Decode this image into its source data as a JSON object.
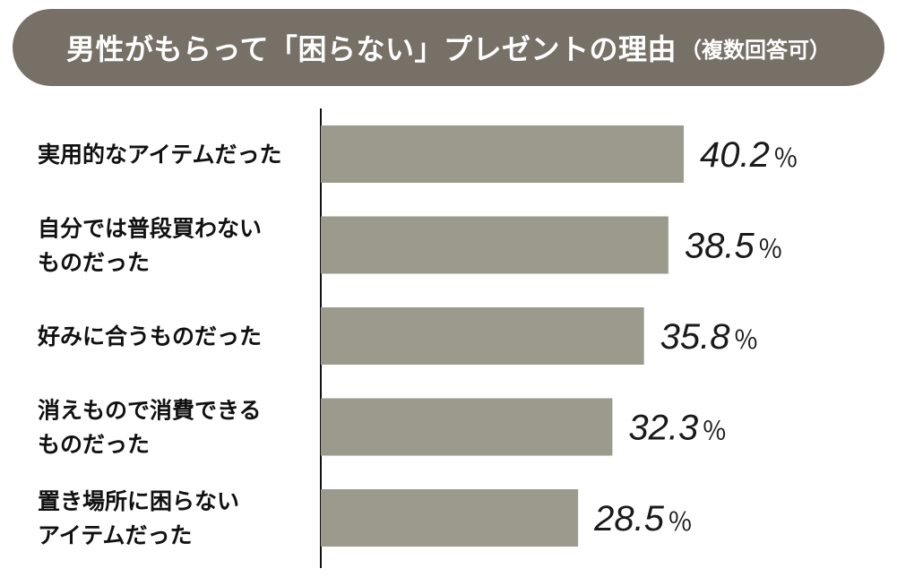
{
  "title": {
    "main": "男性がもらって「困らない」プレゼントの理由",
    "sub": "（複数回答可）"
  },
  "colors": {
    "title_bg": "#777067",
    "bar": "#9b9a8c",
    "axis": "#111111"
  },
  "chart_data": {
    "type": "bar",
    "orientation": "horizontal",
    "categories": [
      [
        "実用的なアイテムだった"
      ],
      [
        "自分では普段買わない",
        "ものだった"
      ],
      [
        "好みに合うものだった"
      ],
      [
        "消えもので消費できる",
        "ものだった"
      ],
      [
        "置き場所に困らない",
        "アイテムだった"
      ]
    ],
    "values": [
      40.2,
      38.5,
      35.8,
      32.3,
      28.5
    ],
    "value_labels": [
      "40.2",
      "38.5",
      "35.8",
      "32.3",
      "28.5"
    ],
    "unit": "％",
    "xlim": [
      0,
      40.2
    ],
    "grid": false,
    "legend": "none"
  }
}
